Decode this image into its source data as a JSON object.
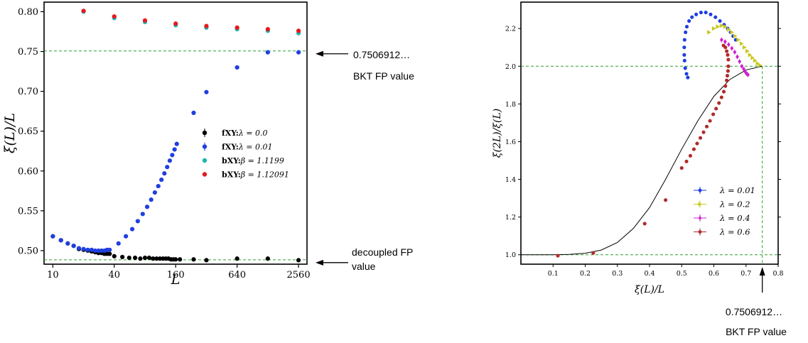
{
  "chart_data": [
    {
      "type": "scatter",
      "xscale": "log2",
      "xlabel": "L",
      "ylabel": "ξ(L)/L",
      "xlim": [
        8.2,
        3100
      ],
      "ylim": [
        0.483,
        0.812
      ],
      "xticks": [
        10,
        40,
        160,
        640,
        2560
      ],
      "xtick_labels": [
        "10",
        "40",
        "160",
        "640",
        "2560"
      ],
      "yticks": [
        0.5,
        0.55,
        0.6,
        0.65,
        0.7,
        0.75,
        0.8
      ],
      "ytick_labels": [
        "0.50",
        "0.55",
        "0.60",
        "0.65",
        "0.70",
        "0.75",
        "0.80"
      ],
      "reference_lines": [
        {
          "y": 0.7506912,
          "color": "#2ca02c",
          "style": "dashed",
          "annotation": [
            "0.7506912…",
            "BKT FP value"
          ]
        },
        {
          "y": 0.4885,
          "color": "#2ca02c",
          "style": "dashed",
          "annotation": [
            "decoupled FP",
            "value"
          ]
        }
      ],
      "legend_position": "center-right",
      "series": [
        {
          "name": "fXY:λ = 0.0",
          "legend_bold": "fXY:",
          "legend_rest": "λ = 0.0",
          "color": "#000000",
          "x": [
            10,
            12,
            14,
            16,
            18,
            20,
            22,
            24,
            26,
            28,
            30,
            32,
            34,
            36,
            40,
            48,
            56,
            64,
            72,
            80,
            88,
            96,
            104,
            112,
            120,
            128,
            136,
            144,
            152,
            160,
            176,
            240,
            320,
            640,
            1280,
            2560
          ],
          "y": [
            0.518,
            0.513,
            0.509,
            0.506,
            0.502,
            0.501,
            0.5,
            0.499,
            0.498,
            0.497,
            0.497,
            0.496,
            0.496,
            0.496,
            0.493,
            0.492,
            0.491,
            0.491,
            0.49,
            0.491,
            0.491,
            0.49,
            0.49,
            0.49,
            0.49,
            0.49,
            0.49,
            0.489,
            0.489,
            0.489,
            0.489,
            0.489,
            0.488,
            0.49,
            0.49,
            0.488
          ]
        },
        {
          "name": "fXY:λ = 0.01",
          "legend_bold": "fXY:",
          "legend_rest": "λ = 0.01",
          "color": "#1f3fe0",
          "x": [
            10,
            12,
            14,
            16,
            18,
            20,
            22,
            24,
            26,
            28,
            30,
            32,
            34,
            36,
            44,
            52,
            60,
            68,
            76,
            84,
            92,
            100,
            108,
            116,
            124,
            132,
            140,
            148,
            156,
            164,
            240,
            320,
            640,
            1280,
            2560
          ],
          "y": [
            0.518,
            0.513,
            0.509,
            0.506,
            0.503,
            0.502,
            0.501,
            0.501,
            0.5,
            0.5,
            0.5,
            0.5,
            0.501,
            0.501,
            0.509,
            0.518,
            0.527,
            0.537,
            0.546,
            0.555,
            0.564,
            0.573,
            0.581,
            0.589,
            0.597,
            0.605,
            0.613,
            0.62,
            0.627,
            0.634,
            0.673,
            0.699,
            0.73,
            0.749,
            0.749
          ]
        },
        {
          "name": "bXY:β = 1.1199",
          "legend_bold": "bXY:",
          "legend_rest": "β = 1.1199",
          "color": "#1fb5b5",
          "x": [
            20,
            40,
            80,
            160,
            320,
            640,
            1280,
            2560
          ],
          "y": [
            0.8,
            0.792,
            0.787,
            0.783,
            0.78,
            0.778,
            0.776,
            0.773
          ]
        },
        {
          "name": "bXY:β = 1.12091",
          "legend_bold": "bXY:",
          "legend_rest": "β = 1.12091",
          "color": "#e8191c",
          "x": [
            20,
            40,
            80,
            160,
            320,
            640,
            1280,
            2560
          ],
          "y": [
            0.801,
            0.794,
            0.789,
            0.785,
            0.782,
            0.78,
            0.778,
            0.776
          ]
        }
      ]
    },
    {
      "type": "scatter",
      "xlabel": "ξ(L)/L",
      "ylabel": "ξ(2L)/ξ(L)",
      "xlim": [
        0.0,
        0.8
      ],
      "ylim": [
        0.95,
        2.34
      ],
      "xticks": [
        0.1,
        0.2,
        0.3,
        0.4,
        0.5,
        0.6,
        0.7,
        0.8
      ],
      "xtick_labels": [
        "0.1",
        "0.2",
        "0.3",
        "0.4",
        "0.5",
        "0.6",
        "0.7",
        "0.8"
      ],
      "yticks": [
        1.0,
        1.2,
        1.4,
        1.6,
        1.8,
        2.0,
        2.2
      ],
      "ytick_labels": [
        "1.0",
        "1.2",
        "1.4",
        "1.6",
        "1.8",
        "2.0",
        "2.2"
      ],
      "reference_lines": [
        {
          "y": 2.0,
          "color": "#2ca02c",
          "style": "dashed"
        },
        {
          "y": 1.0,
          "color": "#2ca02c",
          "style": "dashed"
        },
        {
          "x": 0.7506912,
          "color": "#2ca02c",
          "style": "dashed",
          "annotation": [
            "0.7506912…",
            "BKT FP value"
          ]
        }
      ],
      "legend_position": "center-right",
      "curve": {
        "color": "#000000",
        "x": [
          0.0,
          0.05,
          0.1,
          0.15,
          0.2,
          0.25,
          0.3,
          0.35,
          0.4,
          0.45,
          0.5,
          0.55,
          0.6,
          0.65,
          0.7,
          0.75
        ],
        "y": [
          1.0,
          1.0,
          1.0,
          1.002,
          1.008,
          1.025,
          1.065,
          1.14,
          1.25,
          1.4,
          1.56,
          1.71,
          1.84,
          1.93,
          1.98,
          2.0
        ]
      },
      "series": [
        {
          "name": "λ = 0.01",
          "color": "#1f3fe0",
          "marker": "circle",
          "x": [
            0.519,
            0.515,
            0.511,
            0.509,
            0.508,
            0.508,
            0.509,
            0.512,
            0.516,
            0.523,
            0.532,
            0.545,
            0.56,
            0.575,
            0.59,
            0.605,
            0.619,
            0.632,
            0.643,
            0.652,
            0.66,
            0.668
          ],
          "y": [
            1.94,
            1.96,
            1.99,
            2.03,
            2.06,
            2.1,
            2.14,
            2.18,
            2.21,
            2.24,
            2.26,
            2.275,
            2.285,
            2.285,
            2.275,
            2.26,
            2.24,
            2.22,
            2.2,
            2.18,
            2.16,
            2.14
          ]
        },
        {
          "name": "λ = 0.2",
          "color": "#c8c81e",
          "marker": "triangle",
          "x": [
            0.585,
            0.6,
            0.612,
            0.624,
            0.635,
            0.646,
            0.656,
            0.666,
            0.676,
            0.686,
            0.695,
            0.704,
            0.712,
            0.72,
            0.728,
            0.736,
            0.743
          ],
          "y": [
            2.18,
            2.2,
            2.21,
            2.215,
            2.21,
            2.195,
            2.18,
            2.16,
            2.14,
            2.12,
            2.1,
            2.08,
            2.06,
            2.045,
            2.03,
            2.015,
            2.005
          ]
        },
        {
          "name": "λ = 0.4",
          "color": "#d11fd1",
          "marker": "diamond",
          "x": [
            0.624,
            0.635,
            0.646,
            0.656,
            0.665,
            0.673,
            0.68,
            0.687,
            0.693,
            0.698,
            0.702,
            0.706
          ],
          "y": [
            2.14,
            2.13,
            2.115,
            2.095,
            2.075,
            2.05,
            2.025,
            2.0,
            1.985,
            1.97,
            1.96,
            1.955
          ]
        },
        {
          "name": "λ = 0.6",
          "color": "#b22a2a",
          "marker": "circle",
          "x": [
            0.115,
            0.225,
            0.385,
            0.45,
            0.5,
            0.515,
            0.527,
            0.538,
            0.548,
            0.558,
            0.568,
            0.578,
            0.588,
            0.598,
            0.607,
            0.616,
            0.624,
            0.631,
            0.636,
            0.64,
            0.642,
            0.644,
            0.645,
            0.645,
            0.643,
            0.64,
            0.636,
            0.63
          ],
          "y": [
            0.995,
            1.01,
            1.165,
            1.29,
            1.46,
            1.495,
            1.525,
            1.56,
            1.59,
            1.62,
            1.65,
            1.68,
            1.71,
            1.745,
            1.775,
            1.805,
            1.835,
            1.865,
            1.895,
            1.925,
            1.95,
            1.975,
            2.0,
            2.035,
            2.06,
            2.08,
            2.1,
            2.11
          ]
        }
      ]
    }
  ]
}
